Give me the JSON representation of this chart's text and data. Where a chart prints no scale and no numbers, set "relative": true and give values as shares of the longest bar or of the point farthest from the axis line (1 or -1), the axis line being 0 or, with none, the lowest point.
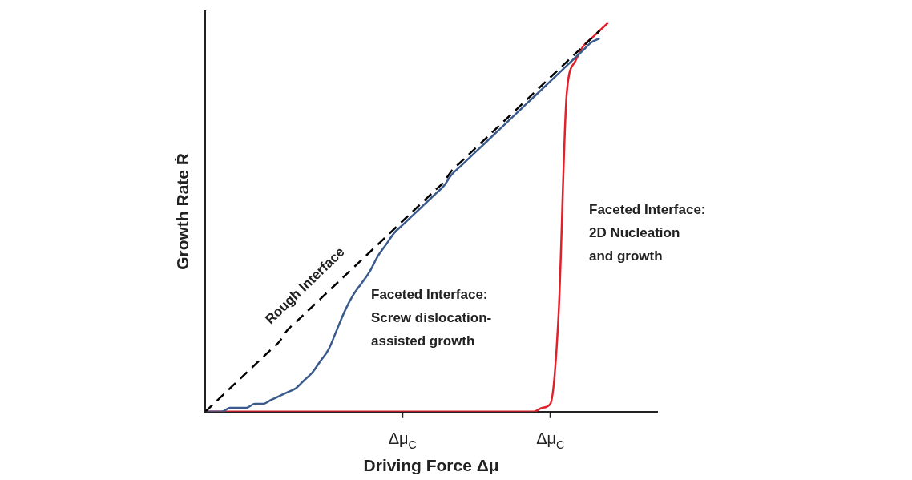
{
  "chart_data": {
    "type": "line",
    "relative": true,
    "xlabel": "Driving Force Δμ",
    "ylabel": "Growth Rate Ṙ",
    "grid": false,
    "legend": false,
    "marker": "none",
    "categories": [
      null,
      null,
      null,
      null,
      null,
      null,
      null,
      null,
      null,
      null,
      null,
      null,
      null,
      null,
      null,
      null,
      null,
      null,
      null,
      null,
      null,
      null,
      null,
      null,
      "Δμ$_{C}$",
      null,
      null,
      null,
      null,
      null,
      null,
      null,
      null,
      null,
      null,
      null,
      null,
      null,
      null,
      null,
      null,
      null,
      "Δμ$_{C}$",
      null,
      null,
      null,
      null,
      null,
      null,
      null,
      null,
      null,
      null,
      null,
      null,
      null
    ],
    "series": [
      {
        "name": "Rough Interface",
        "color": "#000000",
        "line_style": "dashed",
        "values": [
          0,
          0.02,
          0.04,
          0.06,
          0.08,
          0.1,
          0.12,
          0.14,
          0.16,
          0.18,
          0.21,
          0.23,
          0.25,
          0.27,
          0.29,
          0.31,
          0.33,
          0.35,
          0.37,
          0.39,
          0.41,
          0.43,
          0.45,
          0.47,
          0.49,
          0.51,
          0.53,
          0.55,
          0.57,
          0.59,
          0.62,
          0.64,
          0.66,
          0.68,
          0.7,
          0.72,
          0.74,
          0.76,
          0.78,
          0.8,
          0.82,
          0.84,
          0.86,
          0.88,
          0.9,
          0.92,
          0.94,
          0.96,
          0.98,
          null,
          null,
          null,
          null,
          null,
          null,
          null
        ]
      },
      {
        "name": "Faceted Interface:\nScrew dislocation-\nassisted growth",
        "color": "#3b5b8c",
        "line_style": "solid",
        "values": [
          0,
          0,
          0,
          0.01,
          0.01,
          0.01,
          0.02,
          0.02,
          0.03,
          0.04,
          0.05,
          0.06,
          0.08,
          0.1,
          0.13,
          0.16,
          0.21,
          0.26,
          0.3,
          0.33,
          0.36,
          0.4,
          0.43,
          0.46,
          0.48,
          0.5,
          0.52,
          0.54,
          0.56,
          0.58,
          0.61,
          0.63,
          0.65,
          0.67,
          0.69,
          0.71,
          0.73,
          0.75,
          0.77,
          0.79,
          0.81,
          0.83,
          0.85,
          0.87,
          0.89,
          0.91,
          0.93,
          0.95,
          0.96,
          null,
          null,
          null,
          null,
          null,
          null,
          null
        ]
      },
      {
        "name": "Faceted Interface:\n2D Nucleation\nand growth",
        "color": "#e0202a",
        "line_style": "solid",
        "values": [
          0,
          0,
          0,
          0,
          0,
          0,
          0,
          0,
          0,
          0,
          0,
          0,
          0,
          0,
          0,
          0,
          0,
          0,
          0,
          0,
          0,
          0,
          0,
          0,
          0,
          0,
          0,
          0,
          0,
          0,
          0,
          0,
          0,
          0,
          0,
          0,
          0,
          0,
          0,
          0,
          0,
          0.01,
          0.02,
          0.25,
          0.82,
          0.9,
          0.94,
          0.96,
          0.98,
          1.0,
          null,
          null,
          null,
          null,
          null,
          null
        ]
      }
    ]
  }
}
